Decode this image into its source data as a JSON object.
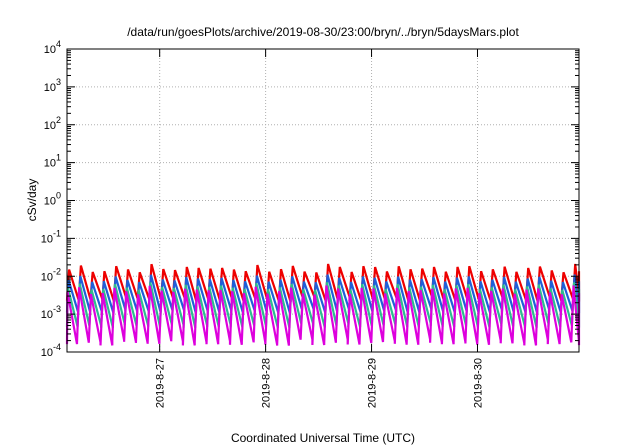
{
  "chart_data": {
    "type": "line",
    "title": "/data/run/goesPlots/archive/2019-08-30/23:00/bryn/../bryn/5daysMars.plot",
    "xlabel": "Coordinated Universal Time (UTC)",
    "ylabel": "cSv/day",
    "yscale": "log",
    "ylim": [
      0.0001,
      10000
    ],
    "xlim": [
      "2019-08-26T03:00",
      "2019-08-30T23:00"
    ],
    "grid": true,
    "x_ticks": [
      "2019-8-27",
      "2019-8-28",
      "2019-8-29",
      "2019-8-30"
    ],
    "y_ticks": [
      {
        "base": "10",
        "exp": "-4"
      },
      {
        "base": "10",
        "exp": "-3"
      },
      {
        "base": "10",
        "exp": "-2"
      },
      {
        "base": "10",
        "exp": "-1"
      },
      {
        "base": "10",
        "exp": "0"
      },
      {
        "base": "10",
        "exp": "1"
      },
      {
        "base": "10",
        "exp": "2"
      },
      {
        "base": "10",
        "exp": "3"
      },
      {
        "base": "10",
        "exp": "4"
      }
    ],
    "series": [
      {
        "color": "#ee0000",
        "peak": 0.015,
        "trough": 0.0025,
        "jitter": 0.18
      },
      {
        "color": "#1f5fd8",
        "peak": 0.008,
        "trough": 0.0012,
        "jitter": 0.15
      },
      {
        "color": "#2dbd8f",
        "peak": 0.005,
        "trough": 0.0005,
        "jitter": 0.15
      },
      {
        "color": "#dd00dd",
        "peak": 0.004,
        "trough": 0.00018,
        "jitter": 0.2
      }
    ],
    "cycles_per_day": 9
  }
}
